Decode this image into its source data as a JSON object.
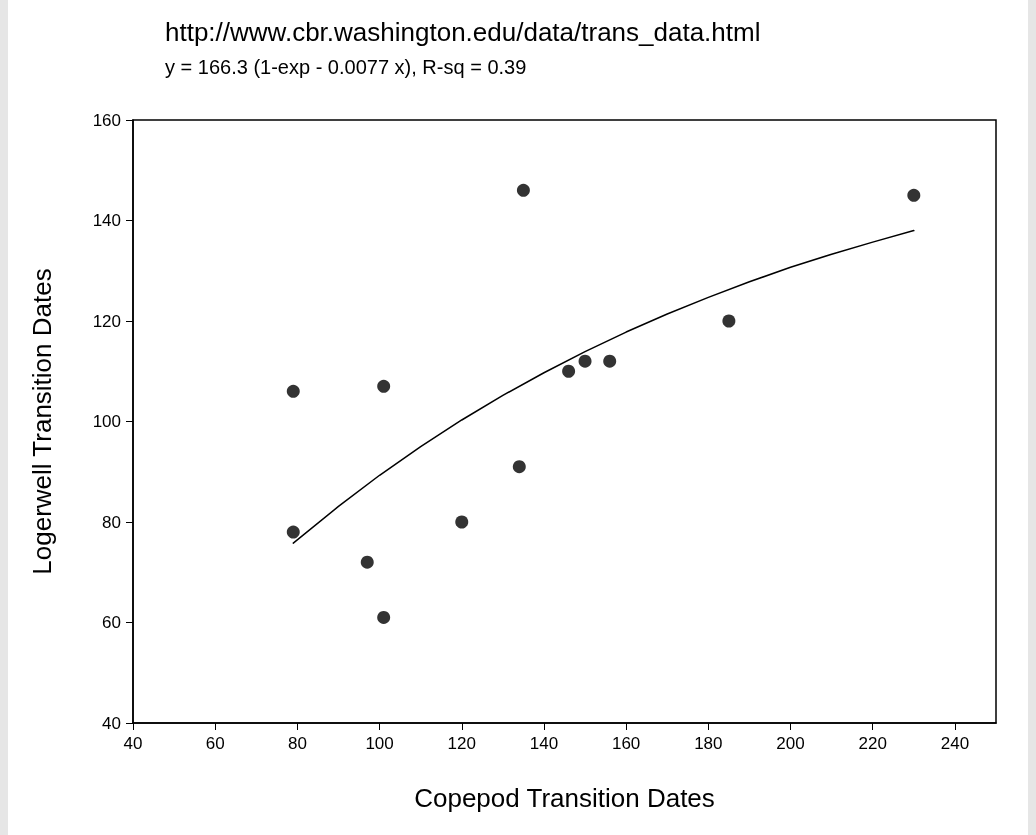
{
  "chart_data": {
    "type": "scatter",
    "title": "http://www.cbr.washington.edu/data/trans_data.html",
    "subtitle": "y = 166.3 (1-exp - 0.0077 x), R-sq = 0.39",
    "xlabel": "Copepod Transition Dates",
    "ylabel": "Logerwell Transition Dates",
    "series": [
      {
        "color": "#000000",
        "marker": "circle",
        "x": [
          79,
          79,
          97,
          101,
          101,
          120,
          134,
          135,
          146,
          150,
          156,
          185,
          230
        ],
        "values": [
          106,
          78,
          72,
          61,
          107,
          80,
          91,
          146,
          110,
          112,
          112,
          120,
          145
        ]
      },
      {
        "type": "line",
        "color": "#000000",
        "marker": "none",
        "line_style": "solid",
        "x": [
          79,
          90,
          100,
          110,
          120,
          130,
          140,
          150,
          160,
          170,
          180,
          190,
          200,
          210,
          220,
          230
        ],
        "values": [
          75.8,
          83.1,
          89.3,
          95.0,
          100.3,
          105.2,
          109.7,
          113.9,
          117.8,
          121.4,
          124.7,
          127.8,
          130.7,
          133.3,
          135.7,
          138.0
        ]
      }
    ],
    "xlim": [
      40,
      250
    ],
    "xticks": [
      40,
      60,
      80,
      100,
      120,
      140,
      160,
      180,
      200,
      220,
      240
    ],
    "ylim": [
      40,
      160
    ],
    "yticks": [
      40,
      60,
      80,
      100,
      120,
      140,
      160
    ],
    "grid": false
  }
}
